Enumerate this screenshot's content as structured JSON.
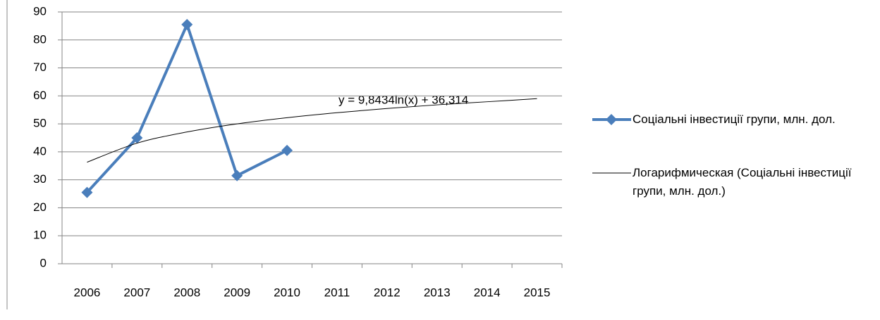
{
  "chart_data": {
    "type": "line",
    "categories": [
      "2006",
      "2007",
      "2008",
      "2009",
      "2010",
      "2011",
      "2012",
      "2013",
      "2014",
      "2015"
    ],
    "series": [
      {
        "name": "Соціальні інвестиції групи, млн. дол.",
        "color": "#4a7ebb",
        "marker": "diamond",
        "values": [
          25.5,
          45,
          85.5,
          31.5,
          40.5,
          null,
          null,
          null,
          null,
          null
        ]
      },
      {
        "name": "Логарифмическая (Соціальні інвестиції групи, млн. дол.)",
        "color": "#000000",
        "smooth": true,
        "values": [
          36.3,
          43.1,
          47.1,
          50.0,
          52.2,
          54.0,
          55.5,
          56.8,
          57.9,
          59.0
        ]
      }
    ],
    "annotation": "y = 9,8434ln(x) + 36,314",
    "ylim": [
      0,
      90
    ],
    "yticks": [
      0,
      10,
      20,
      30,
      40,
      50,
      60,
      70,
      80,
      90
    ],
    "grid": true,
    "legend": "right"
  }
}
